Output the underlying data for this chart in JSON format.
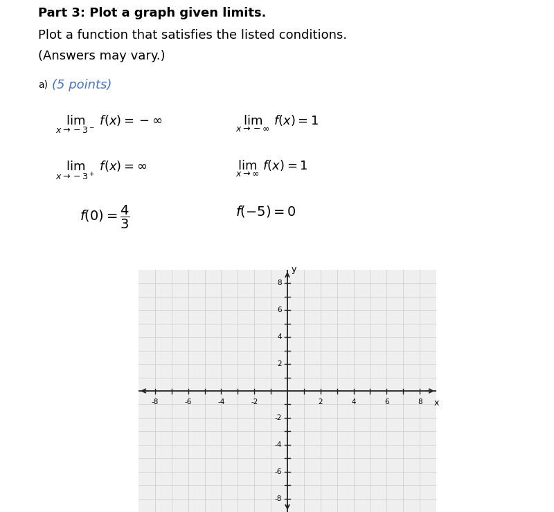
{
  "title_bold": "Part 3: Plot a graph given limits.",
  "subtitle_line1": "Plot a function that satisfies the listed conditions.",
  "subtitle_line2": "(Answers may vary.)",
  "label_a": "a)",
  "points_text": "(5 points)",
  "points_color": "#4472C4",
  "grid_color": "#d0d0d0",
  "axis_color": "#222222",
  "background_color": "#efefef",
  "xlim": [
    -9,
    9
  ],
  "ylim": [
    -9,
    9
  ],
  "xticks": [
    -8,
    -6,
    -4,
    -2,
    2,
    4,
    6,
    8
  ],
  "yticks": [
    -8,
    -6,
    -4,
    -2,
    2,
    4,
    6,
    8
  ],
  "xlabel": "x",
  "ylabel": "y",
  "title_fontsize": 13,
  "subtitle_fontsize": 13,
  "cond_fontsize": 13,
  "label_fontsize": 10,
  "points_fontsize": 13
}
